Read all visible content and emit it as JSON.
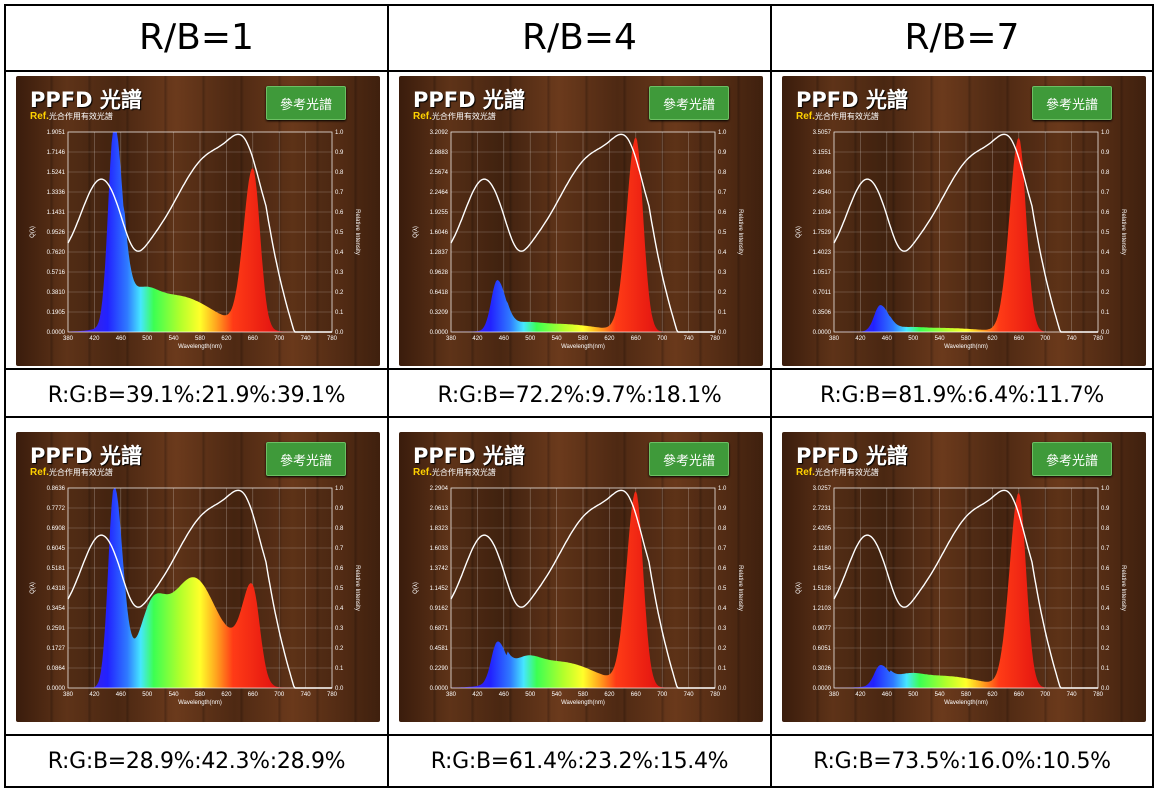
{
  "headers": [
    "R/B=1",
    "R/B=4",
    "R/B=7"
  ],
  "captions": [
    [
      "R:G:B=39.1%:21.9%:39.1%",
      "R:G:B=72.2%:9.7%:18.1%",
      "R:G:B=81.9%:6.4%:11.7%"
    ],
    [
      "R:G:B=28.9%:42.3%:28.9%",
      "R:G:B=61.4%:23.2%:15.4%",
      "R:G:B=73.5%:16.0%:10.5%"
    ]
  ],
  "panel_title": "PPFD 光譜",
  "ref_button": "參考光譜",
  "ref_tag": "Ref.",
  "ref_text": "光合作用有效光譜",
  "colors": {
    "reference_curve": "#ffffff",
    "button": "#3f9a3a",
    "ref_tag": "#ffd200"
  },
  "chart_data": [
    {
      "type": "area",
      "x_label": "Wavelength(nm)",
      "y_label": "Q(λ)",
      "y2_label": "Relative Intensity",
      "x_ticks": [
        380,
        420,
        460,
        500,
        540,
        580,
        620,
        660,
        700,
        740,
        780
      ],
      "y_ticks": [
        "0.0000",
        "0.1905",
        "0.3810",
        "0.5716",
        "0.7620",
        "0.9526",
        "1.1431",
        "1.3336",
        "1.5241",
        "1.7146",
        "1.9051"
      ],
      "y2_ticks": [
        "0.0",
        "0.1",
        "0.2",
        "0.3",
        "0.4",
        "0.5",
        "0.6",
        "0.7",
        "0.8",
        "0.9",
        "1.0"
      ],
      "blue_peak": 1.0,
      "green": 0.18,
      "red_peak": 0.8,
      "broad_green": 0
    },
    {
      "type": "area",
      "x_label": "Wavelength(nm)",
      "y_label": "Q(λ)",
      "y2_label": "Relative Intensity",
      "x_ticks": [
        380,
        420,
        460,
        500,
        540,
        580,
        620,
        660,
        700,
        740,
        780
      ],
      "y_ticks": [
        "0.0000",
        "0.3209",
        "0.6418",
        "0.9628",
        "1.2837",
        "1.6046",
        "1.9255",
        "2.2464",
        "2.5674",
        "2.8883",
        "3.2092"
      ],
      "y2_ticks": [
        "0.0",
        "0.1",
        "0.2",
        "0.3",
        "0.4",
        "0.5",
        "0.6",
        "0.7",
        "0.8",
        "0.9",
        "1.0"
      ],
      "blue_peak": 0.25,
      "green": 0.04,
      "red_peak": 0.97,
      "broad_green": 0
    },
    {
      "type": "area",
      "x_label": "Wavelength(nm)",
      "y_label": "Q(λ)",
      "y2_label": "Relative Intensity",
      "x_ticks": [
        380,
        420,
        460,
        500,
        540,
        580,
        620,
        660,
        700,
        740,
        780
      ],
      "y_ticks": [
        "0.0000",
        "0.3506",
        "0.7011",
        "1.0517",
        "1.4023",
        "1.7529",
        "2.1034",
        "2.4540",
        "2.8046",
        "3.1551",
        "3.5057"
      ],
      "y2_ticks": [
        "0.0",
        "0.1",
        "0.2",
        "0.3",
        "0.4",
        "0.5",
        "0.6",
        "0.7",
        "0.8",
        "0.9",
        "1.0"
      ],
      "blue_peak": 0.13,
      "green": 0.02,
      "red_peak": 0.97,
      "broad_green": 0
    },
    {
      "type": "area",
      "x_label": "Wavelength(nm)",
      "y_label": "Q(λ)",
      "y2_label": "Relative Intensity",
      "x_ticks": [
        380,
        420,
        460,
        500,
        540,
        580,
        620,
        660,
        700,
        740,
        780
      ],
      "y_ticks": [
        "0.0000",
        "0.0864",
        "0.1727",
        "0.2591",
        "0.3454",
        "0.4318",
        "0.5181",
        "0.6045",
        "0.6908",
        "0.7772",
        "0.8636"
      ],
      "y2_ticks": [
        "0.0",
        "0.1",
        "0.2",
        "0.3",
        "0.4",
        "0.5",
        "0.6",
        "0.7",
        "0.8",
        "0.9",
        "1.0"
      ],
      "blue_peak": 1.0,
      "green": 0.0,
      "red_peak": 0.42,
      "broad_green": 0.65
    },
    {
      "type": "area",
      "x_label": "Wavelength(nm)",
      "y_label": "Q(λ)",
      "y2_label": "Relative Intensity",
      "x_ticks": [
        380,
        420,
        460,
        500,
        540,
        580,
        620,
        660,
        700,
        740,
        780
      ],
      "y_ticks": [
        "0.0000",
        "0.2290",
        "0.4581",
        "0.6871",
        "0.9162",
        "1.1452",
        "1.3742",
        "1.6033",
        "1.8323",
        "2.0613",
        "2.2904"
      ],
      "y2_ticks": [
        "0.0",
        "0.1",
        "0.2",
        "0.3",
        "0.4",
        "0.5",
        "0.6",
        "0.7",
        "0.8",
        "0.9",
        "1.0"
      ],
      "blue_peak": 0.2,
      "green": 0.13,
      "red_peak": 0.97,
      "broad_green": 0
    },
    {
      "type": "area",
      "x_label": "Wavelength(nm)",
      "y_label": "Q(λ)",
      "y2_label": "Relative Intensity",
      "x_ticks": [
        380,
        420,
        460,
        500,
        540,
        580,
        620,
        660,
        700,
        740,
        780
      ],
      "y_ticks": [
        "0.0000",
        "0.3026",
        "0.6051",
        "0.9077",
        "1.2103",
        "1.5128",
        "1.8154",
        "2.1180",
        "2.4205",
        "2.7231",
        "3.0257"
      ],
      "y2_ticks": [
        "0.0",
        "0.1",
        "0.2",
        "0.3",
        "0.4",
        "0.5",
        "0.6",
        "0.7",
        "0.8",
        "0.9",
        "1.0"
      ],
      "blue_peak": 0.1,
      "green": 0.06,
      "red_peak": 0.97,
      "broad_green": 0
    }
  ]
}
